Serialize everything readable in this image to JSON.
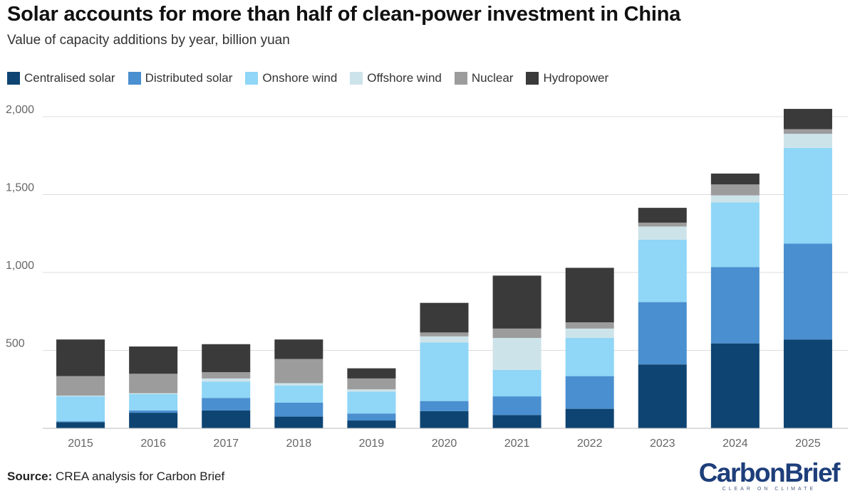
{
  "header": {
    "title": "Solar accounts for more than half of clean-power investment in China",
    "subtitle": "Value of capacity additions by year, billion yuan"
  },
  "footer": {
    "source_label": "Source:",
    "source_text": "CREA analysis for Carbon Brief"
  },
  "logo": {
    "name": "CarbonBrief",
    "tagline": "CLEAR ON CLIMATE"
  },
  "colors": {
    "Centralised solar": "#0e4472",
    "Distributed solar": "#4a8fcf",
    "Onshore wind": "#8fd6f7",
    "Offshore wind": "#cde3ea",
    "Nuclear": "#9c9c9c",
    "Hydropower": "#3a3a3a",
    "gridline": "#dddddd",
    "axis_text": "#666666"
  },
  "chart_data": {
    "type": "bar",
    "stacked": true,
    "categories": [
      "2015",
      "2016",
      "2017",
      "2018",
      "2019",
      "2020",
      "2021",
      "2022",
      "2023",
      "2024",
      "2025"
    ],
    "ylim": [
      0,
      2000
    ],
    "yticks": [
      500,
      1000,
      1500,
      2000
    ],
    "ytick_labels": [
      "500",
      "1,000",
      "1,500",
      "2,000"
    ],
    "grid": true,
    "legend_position": "top-left",
    "series": [
      {
        "name": "Centralised solar",
        "values": [
          40,
          100,
          115,
          75,
          50,
          110,
          85,
          125,
          410,
          545,
          570
        ]
      },
      {
        "name": "Distributed solar",
        "values": [
          5,
          15,
          80,
          90,
          45,
          65,
          120,
          210,
          400,
          490,
          615
        ]
      },
      {
        "name": "Onshore wind",
        "values": [
          160,
          105,
          105,
          110,
          140,
          375,
          170,
          245,
          400,
          415,
          615
        ]
      },
      {
        "name": "Offshore wind",
        "values": [
          5,
          5,
          20,
          15,
          15,
          40,
          205,
          60,
          85,
          45,
          90
        ]
      },
      {
        "name": "Nuclear",
        "values": [
          125,
          125,
          40,
          155,
          70,
          25,
          60,
          40,
          25,
          70,
          30
        ]
      },
      {
        "name": "Hydropower",
        "values": [
          235,
          175,
          180,
          125,
          65,
          190,
          340,
          350,
          95,
          70,
          130
        ]
      }
    ]
  }
}
